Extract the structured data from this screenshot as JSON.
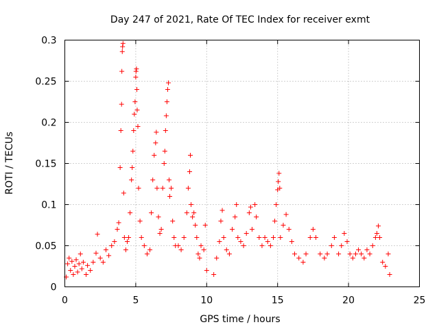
{
  "chart_data": {
    "type": "scatter",
    "title": "Day 247 of 2021, Rate Of TEC Index for receiver exmt",
    "xlabel": "GPS time / hours",
    "ylabel": "ROTI / TECUs",
    "xlim": [
      0,
      25
    ],
    "ylim": [
      0,
      0.3
    ],
    "xticks": [
      0,
      5,
      10,
      15,
      20,
      25
    ],
    "xtick_labels": [
      "0",
      "5",
      "10",
      "15",
      "20",
      "25"
    ],
    "yticks": [
      0,
      0.05,
      0.1,
      0.15,
      0.2,
      0.25,
      0.3
    ],
    "ytick_labels": [
      "0",
      "0.05",
      "0.1",
      "0.15",
      "0.2",
      "0.25",
      "0.3"
    ],
    "grid": true,
    "marker": "+",
    "series": [
      {
        "name": "ROTI",
        "color": "#ff0000",
        "points": [
          [
            0.1,
            0.012
          ],
          [
            0.2,
            0.028
          ],
          [
            0.3,
            0.035
          ],
          [
            0.4,
            0.02
          ],
          [
            0.5,
            0.031
          ],
          [
            0.6,
            0.015
          ],
          [
            0.7,
            0.025
          ],
          [
            0.8,
            0.033
          ],
          [
            0.9,
            0.018
          ],
          [
            1.0,
            0.028
          ],
          [
            1.1,
            0.04
          ],
          [
            1.2,
            0.022
          ],
          [
            1.3,
            0.03
          ],
          [
            1.5,
            0.015
          ],
          [
            1.6,
            0.026
          ],
          [
            1.8,
            0.02
          ],
          [
            2.0,
            0.03
          ],
          [
            2.2,
            0.041
          ],
          [
            2.3,
            0.064
          ],
          [
            2.5,
            0.035
          ],
          [
            2.7,
            0.03
          ],
          [
            2.9,
            0.045
          ],
          [
            3.1,
            0.038
          ],
          [
            3.3,
            0.05
          ],
          [
            3.5,
            0.055
          ],
          [
            3.7,
            0.07
          ],
          [
            3.8,
            0.078
          ],
          [
            3.9,
            0.145
          ],
          [
            3.95,
            0.19
          ],
          [
            4.0,
            0.222
          ],
          [
            4.02,
            0.262
          ],
          [
            4.05,
            0.286
          ],
          [
            4.07,
            0.292
          ],
          [
            4.1,
            0.296
          ],
          [
            4.15,
            0.114
          ],
          [
            4.2,
            0.06
          ],
          [
            4.3,
            0.045
          ],
          [
            4.4,
            0.055
          ],
          [
            4.5,
            0.06
          ],
          [
            4.6,
            0.09
          ],
          [
            4.7,
            0.13
          ],
          [
            4.75,
            0.145
          ],
          [
            4.8,
            0.165
          ],
          [
            4.85,
            0.19
          ],
          [
            4.9,
            0.21
          ],
          [
            4.95,
            0.225
          ],
          [
            5.0,
            0.255
          ],
          [
            5.02,
            0.262
          ],
          [
            5.05,
            0.265
          ],
          [
            5.08,
            0.24
          ],
          [
            5.1,
            0.215
          ],
          [
            5.15,
            0.195
          ],
          [
            5.2,
            0.12
          ],
          [
            5.3,
            0.08
          ],
          [
            5.4,
            0.06
          ],
          [
            5.6,
            0.05
          ],
          [
            5.8,
            0.04
          ],
          [
            6.0,
            0.045
          ],
          [
            6.1,
            0.09
          ],
          [
            6.2,
            0.13
          ],
          [
            6.3,
            0.16
          ],
          [
            6.4,
            0.175
          ],
          [
            6.45,
            0.188
          ],
          [
            6.5,
            0.12
          ],
          [
            6.6,
            0.085
          ],
          [
            6.7,
            0.065
          ],
          [
            6.8,
            0.07
          ],
          [
            6.9,
            0.12
          ],
          [
            7.0,
            0.15
          ],
          [
            7.05,
            0.165
          ],
          [
            7.1,
            0.19
          ],
          [
            7.15,
            0.208
          ],
          [
            7.2,
            0.225
          ],
          [
            7.25,
            0.24
          ],
          [
            7.3,
            0.248
          ],
          [
            7.35,
            0.13
          ],
          [
            7.4,
            0.11
          ],
          [
            7.5,
            0.12
          ],
          [
            7.6,
            0.08
          ],
          [
            7.7,
            0.06
          ],
          [
            7.8,
            0.05
          ],
          [
            8.0,
            0.05
          ],
          [
            8.2,
            0.045
          ],
          [
            8.4,
            0.06
          ],
          [
            8.6,
            0.09
          ],
          [
            8.7,
            0.12
          ],
          [
            8.8,
            0.14
          ],
          [
            8.85,
            0.16
          ],
          [
            8.9,
            0.1
          ],
          [
            9.0,
            0.085
          ],
          [
            9.1,
            0.09
          ],
          [
            9.2,
            0.075
          ],
          [
            9.3,
            0.06
          ],
          [
            9.4,
            0.04
          ],
          [
            9.5,
            0.035
          ],
          [
            9.6,
            0.05
          ],
          [
            9.8,
            0.045
          ],
          [
            9.9,
            0.075
          ],
          [
            10.0,
            0.02
          ],
          [
            10.5,
            0.015
          ],
          [
            10.7,
            0.035
          ],
          [
            10.9,
            0.055
          ],
          [
            11.0,
            0.08
          ],
          [
            11.1,
            0.093
          ],
          [
            11.2,
            0.06
          ],
          [
            11.4,
            0.045
          ],
          [
            11.6,
            0.04
          ],
          [
            11.8,
            0.07
          ],
          [
            12.0,
            0.085
          ],
          [
            12.1,
            0.1
          ],
          [
            12.2,
            0.06
          ],
          [
            12.4,
            0.055
          ],
          [
            12.6,
            0.05
          ],
          [
            12.8,
            0.065
          ],
          [
            13.0,
            0.09
          ],
          [
            13.1,
            0.097
          ],
          [
            13.2,
            0.07
          ],
          [
            13.4,
            0.1
          ],
          [
            13.5,
            0.085
          ],
          [
            13.7,
            0.06
          ],
          [
            13.9,
            0.05
          ],
          [
            14.1,
            0.06
          ],
          [
            14.3,
            0.055
          ],
          [
            14.5,
            0.05
          ],
          [
            14.7,
            0.06
          ],
          [
            14.8,
            0.08
          ],
          [
            14.9,
            0.1
          ],
          [
            15.0,
            0.118
          ],
          [
            15.05,
            0.128
          ],
          [
            15.1,
            0.138
          ],
          [
            15.15,
            0.12
          ],
          [
            15.2,
            0.06
          ],
          [
            15.4,
            0.075
          ],
          [
            15.6,
            0.088
          ],
          [
            15.8,
            0.07
          ],
          [
            16.0,
            0.055
          ],
          [
            16.2,
            0.04
          ],
          [
            16.5,
            0.035
          ],
          [
            16.8,
            0.03
          ],
          [
            17.0,
            0.04
          ],
          [
            17.3,
            0.06
          ],
          [
            17.5,
            0.07
          ],
          [
            17.7,
            0.06
          ],
          [
            18.0,
            0.04
          ],
          [
            18.3,
            0.035
          ],
          [
            18.5,
            0.04
          ],
          [
            18.8,
            0.05
          ],
          [
            19.0,
            0.06
          ],
          [
            19.3,
            0.04
          ],
          [
            19.5,
            0.05
          ],
          [
            19.7,
            0.065
          ],
          [
            19.9,
            0.055
          ],
          [
            20.1,
            0.04
          ],
          [
            20.3,
            0.035
          ],
          [
            20.5,
            0.04
          ],
          [
            20.7,
            0.045
          ],
          [
            20.9,
            0.04
          ],
          [
            21.1,
            0.035
          ],
          [
            21.3,
            0.045
          ],
          [
            21.5,
            0.04
          ],
          [
            21.7,
            0.05
          ],
          [
            21.9,
            0.06
          ],
          [
            22.0,
            0.065
          ],
          [
            22.1,
            0.074
          ],
          [
            22.2,
            0.06
          ],
          [
            22.4,
            0.03
          ],
          [
            22.6,
            0.025
          ],
          [
            22.8,
            0.04
          ],
          [
            22.9,
            0.015
          ]
        ]
      }
    ]
  }
}
